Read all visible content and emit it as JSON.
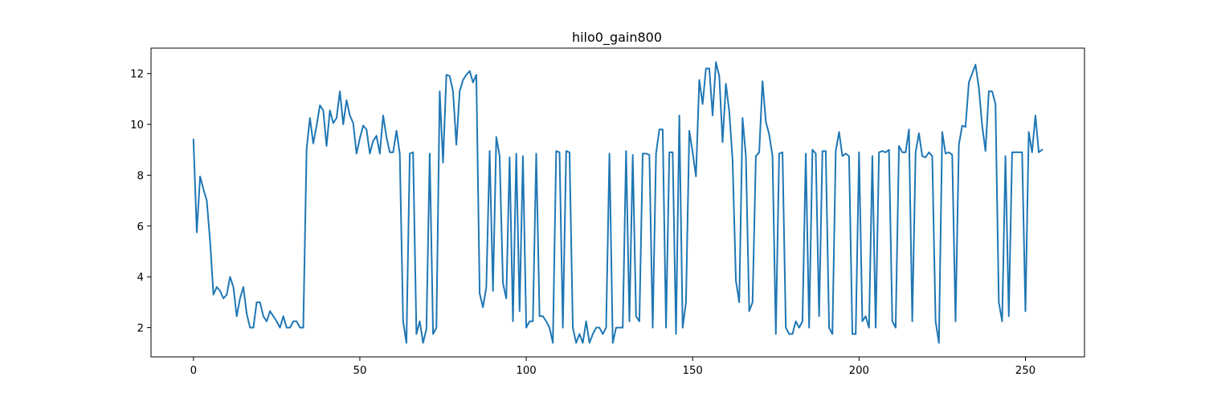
{
  "chart_data": {
    "type": "line",
    "title": "hilo0_gain800",
    "xlabel": "",
    "ylabel": "",
    "xlim": [
      -12.75,
      267.75
    ],
    "ylim": [
      0.85,
      13.0
    ],
    "xticks": [
      0,
      50,
      100,
      150,
      200,
      250
    ],
    "yticks": [
      2,
      4,
      6,
      8,
      10,
      12
    ],
    "xtick_labels": [
      "0",
      "50",
      "100",
      "150",
      "200",
      "250"
    ],
    "ytick_labels": [
      "2",
      "4",
      "6",
      "8",
      "10",
      "12"
    ],
    "grid": false,
    "legend": "none",
    "series": [
      {
        "color": "#1f77b4",
        "values": [
          9.4,
          5.75,
          7.95,
          7.45,
          7.0,
          5.4,
          3.3,
          3.6,
          3.45,
          3.15,
          3.3,
          4.0,
          3.6,
          2.45,
          3.15,
          3.6,
          2.55,
          2.0,
          2.0,
          3.0,
          3.0,
          2.45,
          2.25,
          2.65,
          2.45,
          2.25,
          2.0,
          2.45,
          2.0,
          2.0,
          2.25,
          2.25,
          2.0,
          2.0,
          9.05,
          10.25,
          9.25,
          9.95,
          10.75,
          10.55,
          9.15,
          10.55,
          10.05,
          10.25,
          11.3,
          10.0,
          10.95,
          10.35,
          10.05,
          8.85,
          9.45,
          9.95,
          9.8,
          8.85,
          9.35,
          9.55,
          8.85,
          10.35,
          9.5,
          8.9,
          8.9,
          9.75,
          8.85,
          2.25,
          1.4,
          8.85,
          8.9,
          1.75,
          2.25,
          1.4,
          1.95,
          8.85,
          1.75,
          2.0,
          11.3,
          8.5,
          11.95,
          11.9,
          11.3,
          9.2,
          11.3,
          11.75,
          11.95,
          12.1,
          11.65,
          11.95,
          3.35,
          2.8,
          3.6,
          8.95,
          3.45,
          9.5,
          8.75,
          3.75,
          3.15,
          8.7,
          2.25,
          8.85,
          2.65,
          8.75,
          2.0,
          2.25,
          2.25,
          8.85,
          2.45,
          2.45,
          2.25,
          2.0,
          1.4,
          8.95,
          8.9,
          2.0,
          8.95,
          8.9,
          2.0,
          1.4,
          1.75,
          1.4,
          2.25,
          1.4,
          1.75,
          2.0,
          2.0,
          1.75,
          2.0,
          8.85,
          1.4,
          2.0,
          2.0,
          2.0,
          8.95,
          2.25,
          8.8,
          2.45,
          2.25,
          8.85,
          8.85,
          8.8,
          2.0,
          8.85,
          9.8,
          9.8,
          2.0,
          8.9,
          8.9,
          1.75,
          10.35,
          2.0,
          3.0,
          9.75,
          8.9,
          7.95,
          11.75,
          10.8,
          12.2,
          12.2,
          10.35,
          12.45,
          11.9,
          9.3,
          11.6,
          10.5,
          8.6,
          3.85,
          3.0,
          10.25,
          8.75,
          2.65,
          3.0,
          8.75,
          8.9,
          11.7,
          10.1,
          9.6,
          8.75,
          1.75,
          8.85,
          8.9,
          2.0,
          1.75,
          1.75,
          2.25,
          2.0,
          2.25,
          8.85,
          2.0,
          9.0,
          8.85,
          2.45,
          8.95,
          8.95,
          2.0,
          1.75,
          8.95,
          9.7,
          8.75,
          8.85,
          8.75,
          1.75,
          1.75,
          8.9,
          2.25,
          2.45,
          2.0,
          8.75,
          2.0,
          8.9,
          8.95,
          8.9,
          9.0,
          2.25,
          2.0,
          9.15,
          8.9,
          8.9,
          9.8,
          2.25,
          8.9,
          9.65,
          8.75,
          8.7,
          8.9,
          8.75,
          2.25,
          1.4,
          9.7,
          8.85,
          8.9,
          8.8,
          2.25,
          9.2,
          9.95,
          9.9,
          11.65,
          12.0,
          12.35,
          11.45,
          9.95,
          8.95,
          11.3,
          11.3,
          10.8,
          3.0,
          2.25,
          8.75,
          2.45,
          8.9,
          8.9,
          8.9,
          8.9,
          2.65,
          9.7,
          8.9,
          10.35,
          8.9,
          9.0
        ]
      }
    ]
  }
}
